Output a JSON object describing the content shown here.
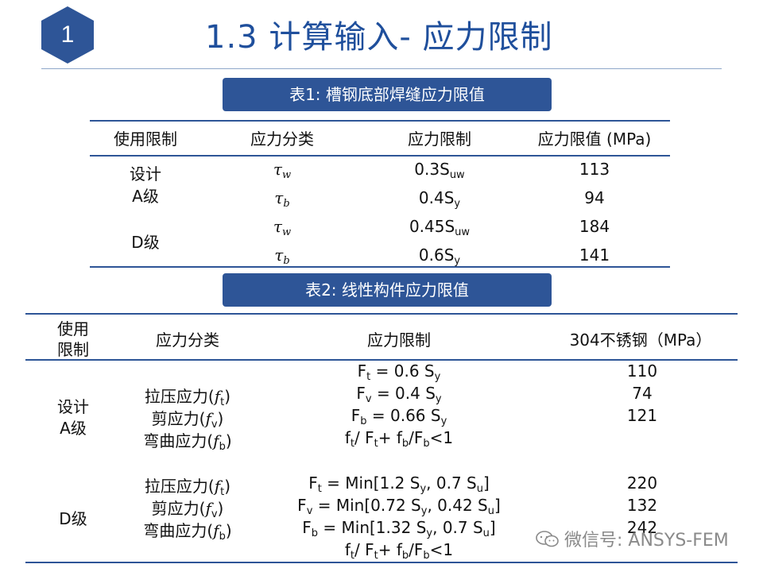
{
  "header": {
    "badge_number": "1",
    "title": "1.3 计算输入- 应力限制"
  },
  "table1": {
    "caption": "表1: 槽钢底部焊缝应力限值",
    "headers": [
      "使用限制",
      "应力分类",
      "应力限制",
      "应力限值 (MPa)"
    ],
    "level_design_line1": "设计",
    "level_design_line2": "A级",
    "level_d": "D级",
    "greek_tau": "τ",
    "rows": [
      {
        "sub": "w",
        "limit_main": "0.3S",
        "limit_sub": "uw",
        "value": "113"
      },
      {
        "sub": "b",
        "limit_main": "0.4S",
        "limit_sub": "y",
        "value": "94"
      },
      {
        "sub": "w",
        "limit_main": "0.45S",
        "limit_sub": "uw",
        "value": "184"
      },
      {
        "sub": "b",
        "limit_main": "0.6S",
        "limit_sub": "y",
        "value": "141"
      }
    ]
  },
  "table2": {
    "caption": "表2: 线性构件应力限值",
    "header_use_line1": "使用",
    "header_use_line2": "限制",
    "header_class": "应力分类",
    "header_limit": "应力限制",
    "header_material": "304不锈钢（MPa）",
    "level_design_line1": "设计",
    "level_design_line2": "A级",
    "level_d": "D级",
    "class_tension": "拉压应力(",
    "class_shear": "剪应力(",
    "class_bending": "弯曲应力(",
    "f": "f",
    "sub_t": "t",
    "sub_v": "v",
    "sub_b": "b",
    "close_paren": ")",
    "design_limits": {
      "ft": "F",
      "ft_rest": " = 0.6 S",
      "fv_rest": " = 0.4 S",
      "fb_rest": " = 0.66 S",
      "y": "y",
      "interaction": "<1"
    },
    "d_limits": {
      "ft_rest": " = Min[1.2 S",
      "ft_mid": ", 0.7 S",
      "fv_rest": " = Min[0.72 S",
      "fv_mid": ", 0.42 S",
      "fb_rest": " = Min[1.32 S",
      "fb_mid": ", 0.7 S",
      "u": "u",
      "close": "]"
    },
    "design_values": [
      "110",
      "74",
      "121"
    ],
    "d_values": [
      "220",
      "132",
      "242"
    ]
  },
  "watermark": "微信号: ANSYS-FEM"
}
